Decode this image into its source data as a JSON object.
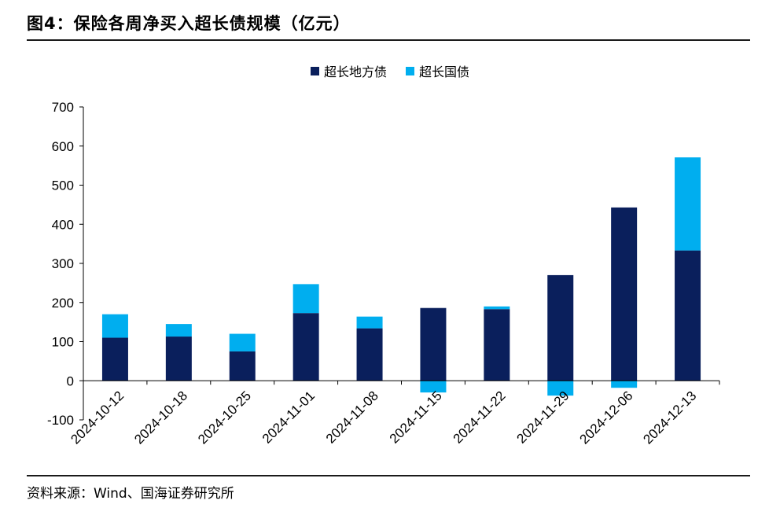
{
  "figure": {
    "title": "图4：保险各周净买入超长债规模（亿元）",
    "source": "资料来源：Wind、国海证券研究所"
  },
  "colors": {
    "local": "#0a1f5c",
    "treasury": "#00aeef",
    "rule": "#1a1a1a"
  },
  "chart_data": {
    "type": "bar",
    "stacked": true,
    "categories": [
      "2024-10-12",
      "2024-10-18",
      "2024-10-25",
      "2024-11-01",
      "2024-11-08",
      "2024-11-15",
      "2024-11-22",
      "2024-11-29",
      "2024-12-06",
      "2024-12-13"
    ],
    "series": [
      {
        "name": "超长地方债",
        "values": [
          110,
          113,
          75,
          173,
          134,
          186,
          183,
          270,
          443,
          333
        ]
      },
      {
        "name": "超长国债",
        "values": [
          60,
          32,
          45,
          74,
          30,
          -30,
          7,
          -38,
          -18,
          238
        ]
      }
    ],
    "ylim": [
      -100,
      700
    ],
    "yticks": [
      -100,
      0,
      100,
      200,
      300,
      400,
      500,
      600,
      700
    ],
    "legend_position": "top-center",
    "grid": false
  }
}
